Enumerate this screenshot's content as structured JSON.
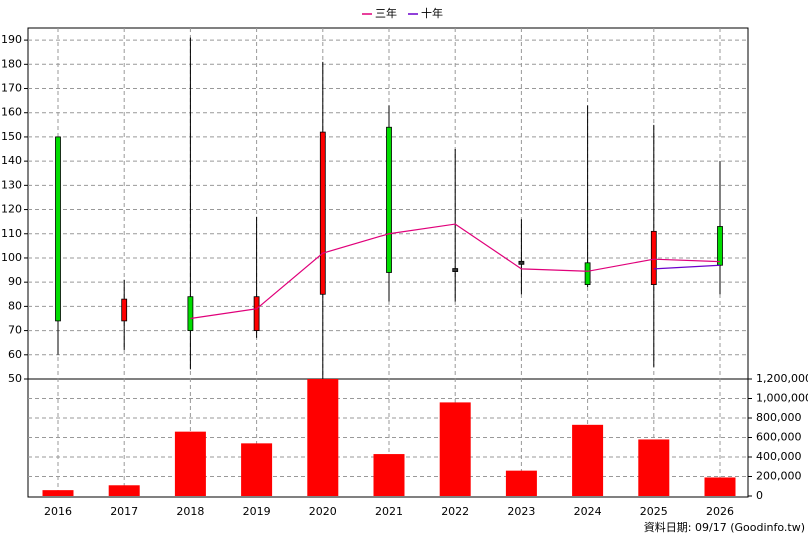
{
  "chart_data": {
    "type": "candlestick",
    "categories": [
      "2016",
      "2017",
      "2018",
      "2019",
      "2020",
      "2021",
      "2022",
      "2023",
      "2024",
      "2025",
      "2026"
    ],
    "open": [
      150,
      74,
      84,
      70,
      85,
      154,
      95,
      98,
      98,
      89,
      113
    ],
    "high": [
      150,
      91,
      191,
      117,
      181,
      163,
      145,
      116,
      163,
      155,
      140
    ],
    "low": [
      60,
      62,
      54,
      67,
      50,
      82,
      82,
      85,
      88,
      55,
      85
    ],
    "close": [
      74,
      83,
      70,
      84,
      152,
      94,
      95,
      98,
      89,
      111,
      97
    ],
    "up_color": "#ff0000",
    "down_color": "#00dd00",
    "flat_color": "#333333",
    "series": [
      {
        "name": "三年",
        "color": "#e0007a",
        "values": [
          null,
          null,
          75,
          79,
          102,
          110,
          114,
          95.5,
          94.5,
          99.5,
          98.5
        ]
      },
      {
        "name": "十年",
        "color": "#6a00cc",
        "values": [
          null,
          null,
          null,
          null,
          null,
          null,
          null,
          null,
          null,
          95.5,
          97
        ]
      }
    ],
    "volume": {
      "color": "#ff0000",
      "values": [
        60000,
        110000,
        660000,
        540000,
        1200000,
        430000,
        960000,
        260000,
        730000,
        580000,
        190000
      ]
    },
    "ylim": [
      50,
      195
    ],
    "yticks": [
      50,
      60,
      70,
      80,
      90,
      100,
      110,
      120,
      130,
      140,
      150,
      160,
      170,
      180,
      190
    ],
    "y2lim": [
      0,
      1200000
    ],
    "y2ticks": [
      0,
      {
        "value": 200000,
        "label": "200,000"
      },
      {
        "value": 400000,
        "label": "400,000"
      },
      {
        "value": 600000,
        "label": "600,000"
      },
      {
        "value": 800000,
        "label": "800,000"
      },
      {
        "value": 1000000,
        "label": "1,000,000"
      },
      {
        "value": 1200000,
        "label": "1,200,000"
      }
    ],
    "grid": true,
    "footer": "資料日期: 09/17 (Goodinfo.tw)"
  }
}
